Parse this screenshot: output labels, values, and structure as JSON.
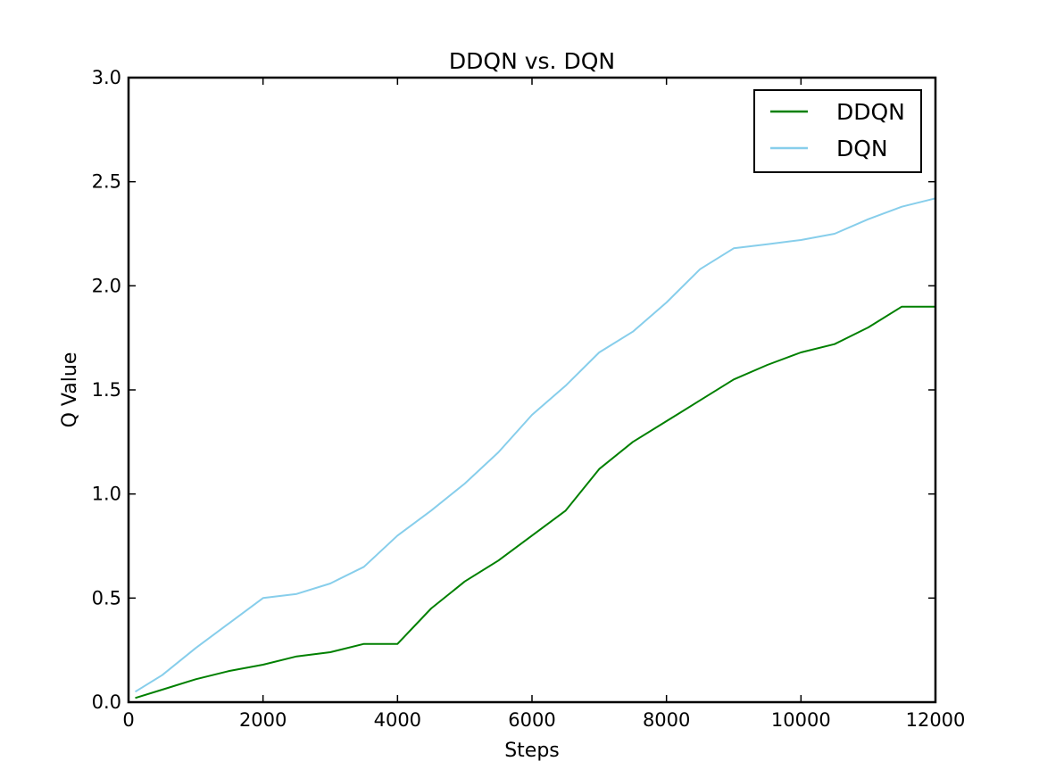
{
  "chart_data": {
    "type": "line",
    "title": "DDQN vs. DQN",
    "xlabel": "Steps",
    "ylabel": "Q Value",
    "xlim": [
      0,
      12000
    ],
    "ylim": [
      0.0,
      3.0
    ],
    "xticks": [
      0,
      2000,
      4000,
      6000,
      8000,
      10000,
      12000
    ],
    "xtick_labels": [
      "0",
      "2000",
      "4000",
      "6000",
      "8000",
      "10000",
      "12000"
    ],
    "yticks": [
      0.0,
      0.5,
      1.0,
      1.5,
      2.0,
      2.5,
      3.0
    ],
    "ytick_labels": [
      "0.0",
      "0.5",
      "1.0",
      "1.5",
      "2.0",
      "2.5",
      "3.0"
    ],
    "grid": false,
    "legend_position": "top-right",
    "series": [
      {
        "name": "DDQN",
        "color": "#008000",
        "x": [
          100,
          500,
          1000,
          1500,
          2000,
          2500,
          3000,
          3500,
          4000,
          4500,
          5000,
          5500,
          6000,
          6500,
          7000,
          7500,
          8000,
          8500,
          9000,
          9500,
          10000,
          10500,
          11000,
          11500,
          12000
        ],
        "y": [
          0.02,
          0.06,
          0.11,
          0.15,
          0.18,
          0.22,
          0.24,
          0.28,
          0.28,
          0.45,
          0.58,
          0.68,
          0.8,
          0.92,
          1.12,
          1.25,
          1.35,
          1.45,
          1.55,
          1.62,
          1.68,
          1.72,
          1.8,
          1.9,
          1.9
        ]
      },
      {
        "name": "DQN",
        "color": "#87CEEB",
        "x": [
          100,
          500,
          1000,
          1500,
          2000,
          2500,
          3000,
          3500,
          4000,
          4500,
          5000,
          5500,
          6000,
          6500,
          7000,
          7500,
          8000,
          8500,
          9000,
          9500,
          10000,
          10500,
          11000,
          11500,
          12000
        ],
        "y": [
          0.05,
          0.13,
          0.26,
          0.38,
          0.5,
          0.52,
          0.57,
          0.65,
          0.8,
          0.92,
          1.05,
          1.2,
          1.38,
          1.52,
          1.68,
          1.78,
          1.92,
          2.08,
          2.18,
          2.2,
          2.22,
          2.25,
          2.32,
          2.38,
          2.42
        ]
      }
    ]
  }
}
